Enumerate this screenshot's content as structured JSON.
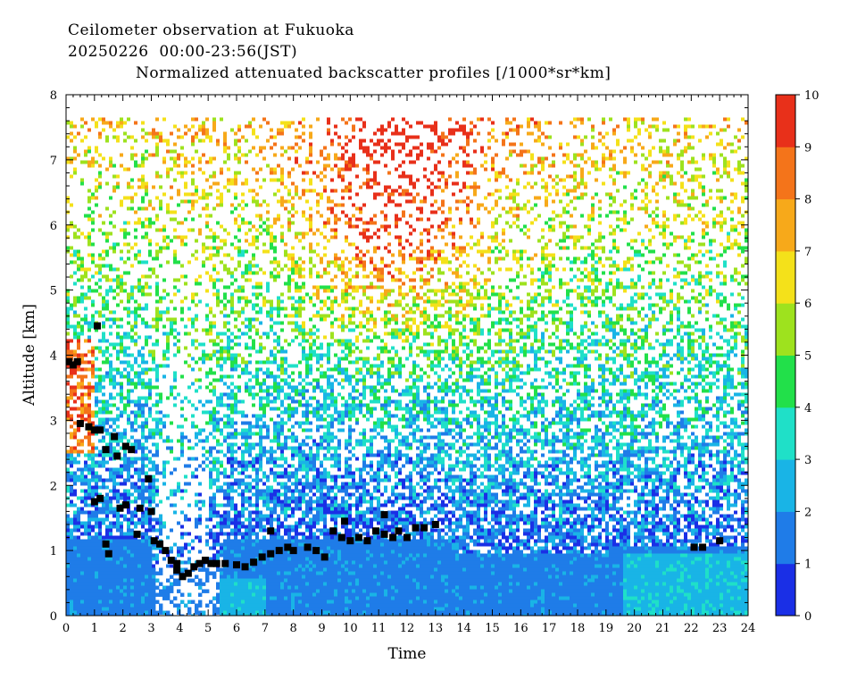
{
  "header": {
    "line1": "Ceilometer observation at Fukuoka",
    "line2": "20250226  00:00-23:56(JST)",
    "line3": "Normalized attenuated backscatter profiles [/1000*sr*km]"
  },
  "chart_data": {
    "type": "heatmap",
    "title": "Normalized attenuated backscatter profiles [/1000*sr*km]",
    "xlabel": "Time",
    "ylabel": "Altitude [km]",
    "xlim": [
      0,
      24
    ],
    "ylim": [
      0,
      8
    ],
    "x_ticks": [
      "0",
      "1",
      "2",
      "3",
      "4",
      "5",
      "6",
      "7",
      "8",
      "9",
      "10",
      "11",
      "12",
      "13",
      "14",
      "15",
      "16",
      "17",
      "18",
      "19",
      "20",
      "21",
      "22",
      "23",
      "24"
    ],
    "y_ticks": [
      "0",
      "1",
      "2",
      "3",
      "4",
      "5",
      "6",
      "7",
      "8"
    ],
    "colorbar": {
      "min": 0,
      "max": 10,
      "ticks": [
        "0",
        "1",
        "2",
        "3",
        "4",
        "5",
        "6",
        "7",
        "8",
        "9",
        "10"
      ],
      "colors": [
        "#1a2fe6",
        "#1f7ce8",
        "#19b4e6",
        "#1fe0c8",
        "#22e04a",
        "#9ee21e",
        "#f4e11a",
        "#f7a91a",
        "#f4741a",
        "#e8301a"
      ]
    },
    "data_top_km": 7.65,
    "cloud_base": [
      {
        "x": 0.1,
        "y": 3.9
      },
      {
        "x": 0.25,
        "y": 3.85
      },
      {
        "x": 0.4,
        "y": 3.9
      },
      {
        "x": 0.5,
        "y": 2.95
      },
      {
        "x": 0.8,
        "y": 2.9
      },
      {
        "x": 1.0,
        "y": 2.85
      },
      {
        "x": 1.1,
        "y": 4.45
      },
      {
        "x": 1.2,
        "y": 2.85
      },
      {
        "x": 1.4,
        "y": 2.55
      },
      {
        "x": 1.7,
        "y": 2.75
      },
      {
        "x": 1.8,
        "y": 2.45
      },
      {
        "x": 2.1,
        "y": 2.6
      },
      {
        "x": 2.3,
        "y": 2.55
      },
      {
        "x": 1.0,
        "y": 1.75
      },
      {
        "x": 1.2,
        "y": 1.8
      },
      {
        "x": 1.4,
        "y": 1.1
      },
      {
        "x": 1.5,
        "y": 0.95
      },
      {
        "x": 1.9,
        "y": 1.65
      },
      {
        "x": 2.1,
        "y": 1.7
      },
      {
        "x": 2.5,
        "y": 1.25
      },
      {
        "x": 2.6,
        "y": 1.65
      },
      {
        "x": 2.9,
        "y": 2.1
      },
      {
        "x": 3.0,
        "y": 1.6
      },
      {
        "x": 3.1,
        "y": 1.15
      },
      {
        "x": 3.3,
        "y": 1.1
      },
      {
        "x": 3.5,
        "y": 1.0
      },
      {
        "x": 3.7,
        "y": 0.85
      },
      {
        "x": 3.9,
        "y": 0.7
      },
      {
        "x": 4.1,
        "y": 0.6
      },
      {
        "x": 4.3,
        "y": 0.65
      },
      {
        "x": 4.5,
        "y": 0.75
      },
      {
        "x": 4.7,
        "y": 0.8
      },
      {
        "x": 4.9,
        "y": 0.85
      },
      {
        "x": 5.1,
        "y": 0.8
      },
      {
        "x": 5.3,
        "y": 0.8
      },
      {
        "x": 5.6,
        "y": 0.8
      },
      {
        "x": 6.0,
        "y": 0.78
      },
      {
        "x": 6.3,
        "y": 0.75
      },
      {
        "x": 6.6,
        "y": 0.82
      },
      {
        "x": 6.9,
        "y": 0.9
      },
      {
        "x": 7.2,
        "y": 0.95
      },
      {
        "x": 7.5,
        "y": 1.0
      },
      {
        "x": 7.8,
        "y": 1.05
      },
      {
        "x": 8.0,
        "y": 1.0
      },
      {
        "x": 8.5,
        "y": 1.05
      },
      {
        "x": 8.8,
        "y": 1.0
      },
      {
        "x": 9.1,
        "y": 0.9
      },
      {
        "x": 9.4,
        "y": 1.3
      },
      {
        "x": 9.7,
        "y": 1.2
      },
      {
        "x": 10.0,
        "y": 1.15
      },
      {
        "x": 10.3,
        "y": 1.2
      },
      {
        "x": 10.6,
        "y": 1.15
      },
      {
        "x": 10.9,
        "y": 1.3
      },
      {
        "x": 11.2,
        "y": 1.25
      },
      {
        "x": 11.5,
        "y": 1.2
      },
      {
        "x": 11.7,
        "y": 1.3
      },
      {
        "x": 12.0,
        "y": 1.2
      },
      {
        "x": 12.3,
        "y": 1.35
      },
      {
        "x": 12.6,
        "y": 1.35
      },
      {
        "x": 13.0,
        "y": 1.4
      },
      {
        "x": 3.9,
        "y": 0.8
      },
      {
        "x": 7.2,
        "y": 1.3
      },
      {
        "x": 9.8,
        "y": 1.45
      },
      {
        "x": 11.2,
        "y": 1.55
      },
      {
        "x": 22.1,
        "y": 1.05
      },
      {
        "x": 22.4,
        "y": 1.05
      },
      {
        "x": 23.0,
        "y": 1.15
      }
    ]
  }
}
